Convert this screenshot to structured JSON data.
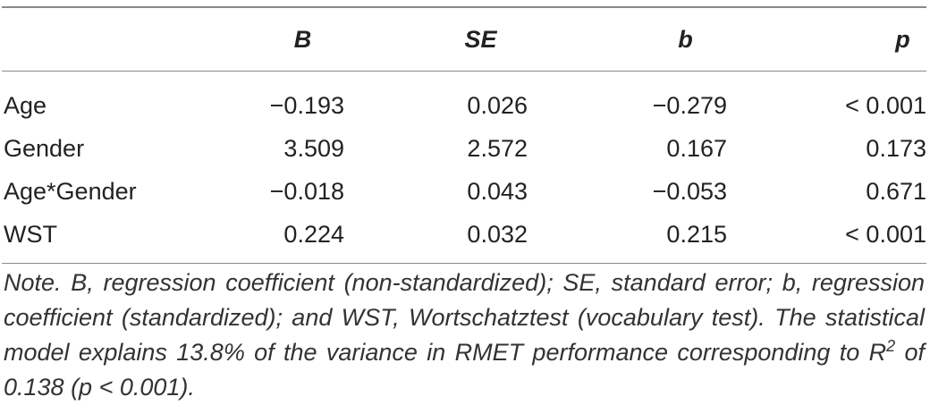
{
  "table": {
    "headers": [
      "",
      "B",
      "SE",
      "b",
      "p"
    ],
    "rows": [
      {
        "label": "Age",
        "B": "−0.193",
        "SE": "0.026",
        "b": "−0.279",
        "p": "< 0.001"
      },
      {
        "label": "Gender",
        "B": "3.509",
        "SE": "2.572",
        "b": "0.167",
        "p": "0.173"
      },
      {
        "label": "Age*Gender",
        "B": "−0.018",
        "SE": "0.043",
        "b": "−0.053",
        "p": "0.671"
      },
      {
        "label": "WST",
        "B": "0.224",
        "SE": "0.032",
        "b": "0.215",
        "p": "< 0.001"
      }
    ]
  },
  "note": {
    "text_before_sup": "Note. B, regression coefficient (non-standardized); SE, standard error; b, regression coefficient (standardized); and WST, Wortschatztest (vocabulary test). The statistical model explains 13.8% of the variance in RMET performance corresponding to R",
    "sup": "2",
    "text_after_sup": " of 0.138 (p < 0.001)."
  }
}
